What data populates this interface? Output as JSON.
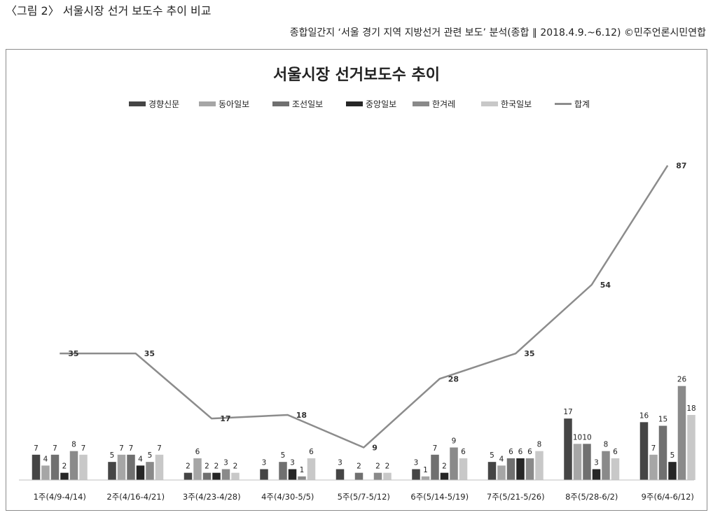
{
  "figure": {
    "caption": "〈그림 2〉 서울시장 선거 보도수 추이 비교",
    "source": "종합일간지 ‘서울 경기 지역 지방선거 관련 보도’ 분석(종합 ∥ 2018.4.9.~6.12) ©민주언론시민연합"
  },
  "chart_data": {
    "type": "bar",
    "title": "서울시장 선거보도수 추이",
    "categories": [
      "1주(4/9-4/14)",
      "2주(4/16-4/21)",
      "3주(4/23-4/28)",
      "4주(4/30-5/5)",
      "5주(5/7-5/12)",
      "6주(5/14-5/19)",
      "7주(5/21-5/26)",
      "8주(5/28-6/2)",
      "9주(6/4-6/12)"
    ],
    "series": [
      {
        "name": "경향신문",
        "color": "#454545",
        "values": [
          7,
          5,
          2,
          3,
          3,
          3,
          5,
          17,
          16
        ]
      },
      {
        "name": "동아일보",
        "color": "#a6a6a6",
        "values": [
          4,
          7,
          6,
          null,
          null,
          1,
          4,
          10,
          7
        ]
      },
      {
        "name": "조선일보",
        "color": "#707070",
        "values": [
          7,
          7,
          2,
          5,
          2,
          7,
          6,
          10,
          15
        ]
      },
      {
        "name": "중앙일보",
        "color": "#262626",
        "values": [
          2,
          4,
          2,
          3,
          null,
          2,
          6,
          3,
          5
        ]
      },
      {
        "name": "한겨레",
        "color": "#8a8a8a",
        "values": [
          8,
          5,
          3,
          1,
          2,
          9,
          6,
          8,
          26
        ]
      },
      {
        "name": "한국일보",
        "color": "#c8c8c8",
        "values": [
          7,
          7,
          2,
          6,
          2,
          6,
          8,
          6,
          18
        ]
      }
    ],
    "line_series": {
      "name": "합계",
      "color": "#8c8c8c",
      "values": [
        35,
        35,
        17,
        18,
        9,
        28,
        35,
        54,
        87
      ]
    },
    "legend_position": "top",
    "grid": false,
    "xlabel": "",
    "ylabel": "",
    "ylim": [
      0,
      90
    ]
  }
}
